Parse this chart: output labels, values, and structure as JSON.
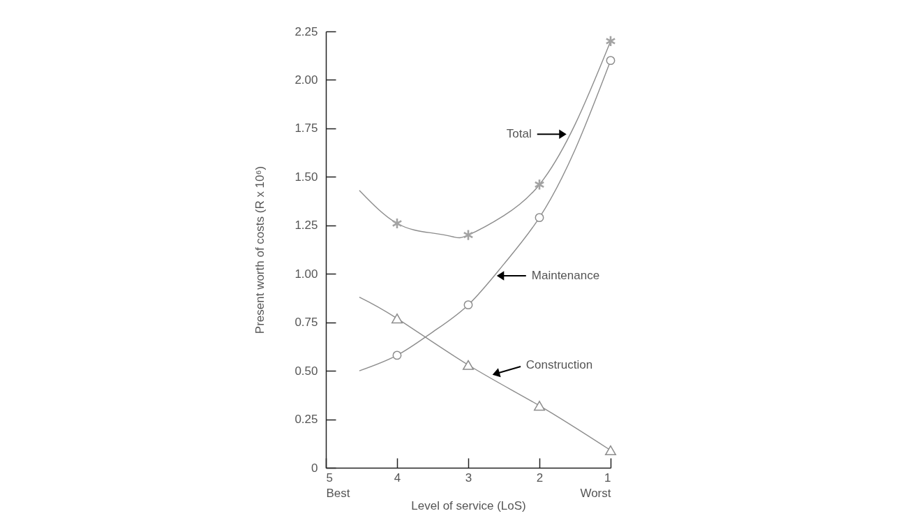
{
  "chart_data": {
    "type": "line",
    "xlabel": "Level of service (LoS)",
    "ylabel": "Present worth of costs (R x 10⁶)",
    "xlim": [
      5,
      1
    ],
    "xticks": [
      {
        "value": 5,
        "label": "5\nBest"
      },
      4,
      3,
      2,
      {
        "value": 1,
        "label": "1\nWorst"
      }
    ],
    "ylim": [
      0,
      2.25
    ],
    "yticks": [
      0,
      0.25,
      {
        "value": 0.5,
        "label": "0.50"
      },
      0.75,
      {
        "value": 1,
        "label": "1.00"
      },
      1.25,
      {
        "value": 1.5,
        "label": "1.50"
      },
      1.75,
      {
        "value": 2,
        "label": "2.00"
      },
      2.25
    ],
    "grid": false,
    "line_style": "solid",
    "series": [
      {
        "type": "line",
        "marker": "none",
        "color": "#8c8c8c",
        "x": [
          4.53,
          4,
          3.5,
          3.2,
          3,
          2.5,
          2,
          1.5,
          1
        ],
        "values": [
          1.43,
          1.26,
          1.21,
          1.19,
          1.2,
          1.3,
          1.46,
          1.77,
          2.2
        ]
      },
      {
        "type": "line",
        "marker": "none",
        "color": "#8c8c8c",
        "x": [
          4.53,
          4,
          3.5,
          3,
          2.5,
          2,
          1.5,
          1
        ],
        "values": [
          0.5,
          0.58,
          0.7,
          0.84,
          1.05,
          1.29,
          1.64,
          2.1
        ]
      },
      {
        "type": "line",
        "marker": "none",
        "color": "#8c8c8c",
        "x": [
          4.53,
          4,
          3,
          2,
          1
        ],
        "values": [
          0.88,
          0.77,
          0.53,
          0.32,
          0.09
        ]
      },
      {
        "type": "scatter",
        "marker": "cross",
        "color": "#a3a3a3",
        "x": [
          4,
          3,
          2,
          1
        ],
        "values": [
          1.26,
          1.2,
          1.46,
          2.2
        ]
      },
      {
        "type": "scatter",
        "marker": "circle",
        "color": "#8c8c8c",
        "x": [
          4,
          3,
          2,
          1
        ],
        "values": [
          0.58,
          0.84,
          1.29,
          2.1
        ]
      },
      {
        "type": "scatter",
        "marker": "triangle",
        "color": "#8c8c8c",
        "x": [
          4,
          3,
          2,
          1
        ],
        "values": [
          0.77,
          0.53,
          0.32,
          0.09
        ]
      }
    ],
    "annotations": [
      {
        "text": "Total",
        "x": 1.62,
        "y": 1.72
      },
      {
        "text": "Maintenance",
        "x": 2.6,
        "y": 0.99
      },
      {
        "text": "Construction",
        "x": 2.66,
        "y": 0.48
      }
    ]
  }
}
